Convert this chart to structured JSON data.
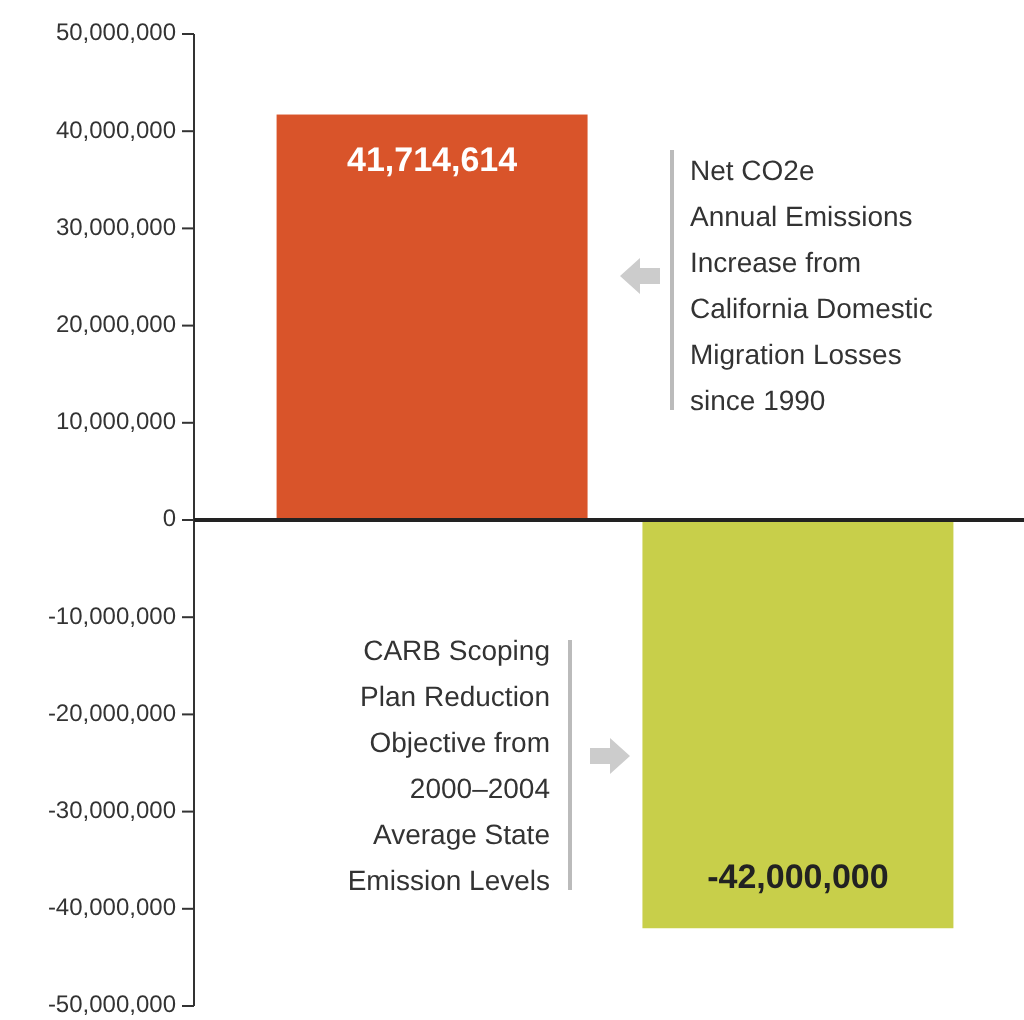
{
  "chart_data": {
    "type": "bar",
    "categories": [
      null,
      null
    ],
    "values": [
      41714614,
      -42000000
    ],
    "colors": [
      "#d9542a",
      "#c8cf4a"
    ],
    "value_labels": [
      "41,714,614",
      "-42,000,000"
    ],
    "ylim": [
      -50000000,
      50000000
    ],
    "yticks": [
      {
        "value": -50000000,
        "label": "-50,000,000"
      },
      {
        "value": -40000000,
        "label": "-40,000,000"
      },
      {
        "value": -30000000,
        "label": "-30,000,000"
      },
      {
        "value": -20000000,
        "label": "-20,000,000"
      },
      {
        "value": -10000000,
        "label": "-10,000,000"
      },
      0,
      {
        "value": 10000000,
        "label": "10,000,000"
      },
      {
        "value": 20000000,
        "label": "20,000,000"
      },
      {
        "value": 30000000,
        "label": "30,000,000"
      },
      {
        "value": 40000000,
        "label": "40,000,000"
      },
      {
        "value": 50000000,
        "label": "50,000,000"
      }
    ],
    "annotations": [
      "Net CO2e\nAnnual Emissions\nIncrease from\nCalifornia Domestic\nMigration Losses\nsince 1990",
      "CARB Scoping\nPlan Reduction\nObjective from\n2000–2004\nAverage State\nEmission Levels"
    ]
  }
}
